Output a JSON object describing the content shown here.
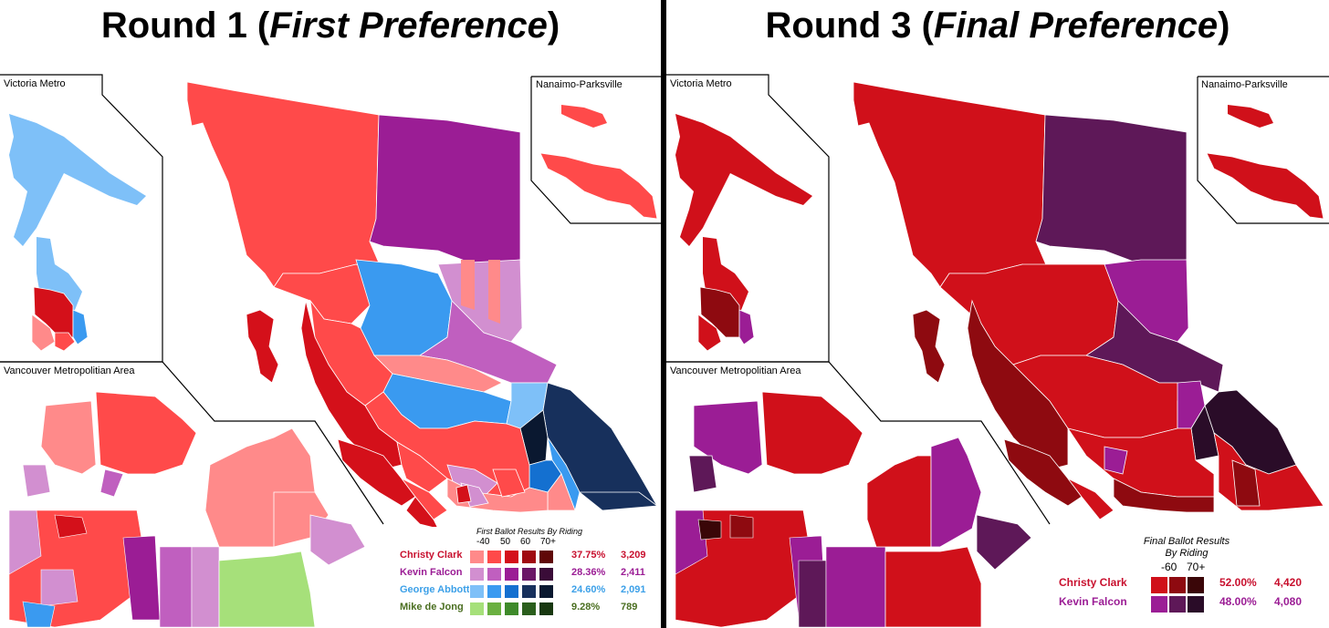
{
  "left": {
    "title_prefix": "Round 1 (",
    "title_italic": "First Preference",
    "title_suffix": ")",
    "insets": {
      "victoria": "Victoria Metro",
      "nanaimo": "Nanaimo-Parksville",
      "vancouver": "Vancouver Metropolitian Area"
    },
    "legend": {
      "title": "First Ballot Results By Riding",
      "scale": [
        "-40",
        "50",
        "60",
        "70+"
      ],
      "candidates": [
        {
          "name": "Christy Clark",
          "pct": "37.75%",
          "votes": "3,209",
          "color": "#c8102e",
          "shades": [
            "#ff8a8a",
            "#ff4a4a",
            "#d4101a",
            "#a00a10",
            "#600808"
          ]
        },
        {
          "name": "Kevin Falcon",
          "pct": "28.36%",
          "votes": "2,411",
          "color": "#9b1d95",
          "shades": [
            "#d28fd0",
            "#c05fbf",
            "#9b1d95",
            "#6a1666",
            "#3a0c38"
          ]
        },
        {
          "name": "George Abbott",
          "pct": "24.60%",
          "votes": "2,091",
          "color": "#3ca0e8",
          "shades": [
            "#7ec0f8",
            "#3a9af0",
            "#1470d0",
            "#17305c",
            "#0a1830"
          ]
        },
        {
          "name": "Mike de Jong",
          "pct": "9.28%",
          "votes": "789",
          "color": "#4a6e20",
          "shades": [
            "#a6e07a",
            "#6ab040",
            "#3e8a2a",
            "#2a5e1c",
            "#183810"
          ]
        }
      ]
    }
  },
  "right": {
    "title_prefix": "Round 3 (",
    "title_italic": "Final Preference",
    "title_suffix": ")",
    "insets": {
      "victoria": "Victoria Metro",
      "nanaimo": "Nanaimo-Parksville",
      "vancouver": "Vancouver Metropolitian Area"
    },
    "legend": {
      "title_line1": "Final Ballot Results",
      "title_line2": "By Riding",
      "scale": [
        "-60",
        "70+"
      ],
      "candidates": [
        {
          "name": "Christy Clark",
          "pct": "52.00%",
          "votes": "4,420",
          "color": "#c8102e",
          "shades": [
            "#d0101a",
            "#8e0a10",
            "#3a0608"
          ]
        },
        {
          "name": "Kevin Falcon",
          "pct": "48.00%",
          "votes": "4,080",
          "color": "#9b1d95",
          "shades": [
            "#9b1d95",
            "#5e1858",
            "#2a0c28"
          ]
        }
      ]
    }
  },
  "colors": {
    "clark_light": "#ff8a8a",
    "clark_mid": "#ff4a4a",
    "clark": "#d4101a",
    "clark_dark": "#8e0a10",
    "clark_darkest": "#3a0608",
    "falcon_light": "#d28fd0",
    "falcon": "#9b1d95",
    "falcon_dark": "#5e1858",
    "abbott": "#3a9af0",
    "abbott_light": "#7ec0f8",
    "abbott_dark": "#17305c",
    "dejong_light": "#a6e07a"
  }
}
